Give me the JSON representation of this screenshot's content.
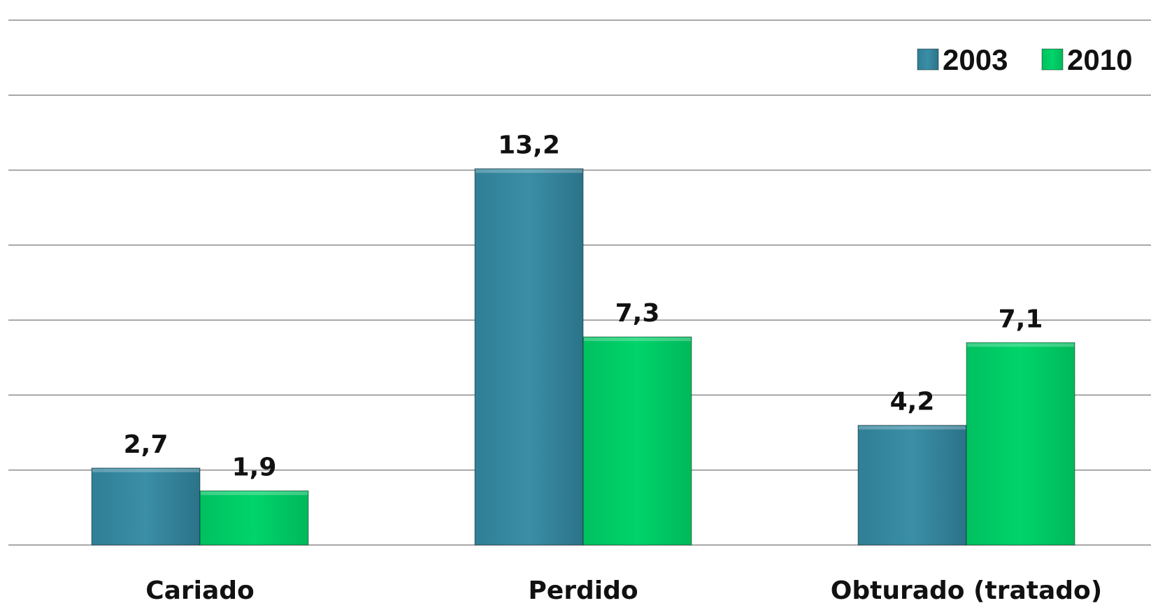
{
  "chart_data": {
    "type": "bar",
    "categories": [
      "Cariado",
      "Perdido",
      "Obturado (tratado)"
    ],
    "series": [
      {
        "name": "2003",
        "values": [
          2.7,
          13.2,
          4.2
        ],
        "labels": [
          "2,7",
          "13,2",
          "4,2"
        ],
        "color": "#3a8ea6"
      },
      {
        "name": "2010",
        "values": [
          1.9,
          7.3,
          7.1
        ],
        "labels": [
          "1,9",
          "7,3",
          "7,1"
        ],
        "color": "#00d46a"
      }
    ],
    "title": "",
    "xlabel": "",
    "ylabel": "",
    "ylim": [
      0,
      14
    ],
    "grid": true,
    "legend": "top-right"
  }
}
